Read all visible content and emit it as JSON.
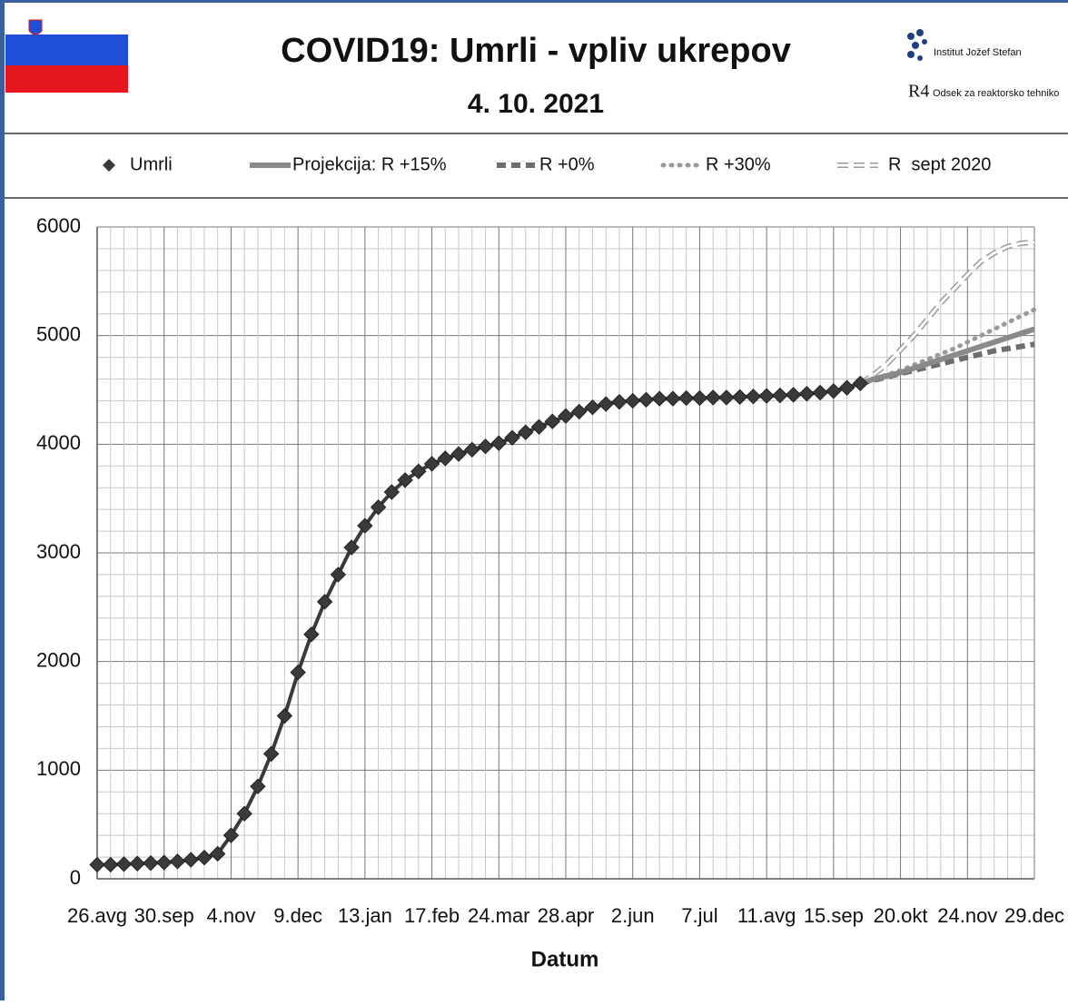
{
  "header": {
    "logo_texts": [
      "Institut Jožef Stefan",
      "Odsek za reaktorsko tehniko"
    ],
    "logo_mark": "R4"
  },
  "chart_data": {
    "type": "line",
    "title": "COVID19: Umrli - vpliv ukrepov",
    "subtitle": "4. 10. 2021",
    "x_label": "Datum",
    "categories": [
      "26.avg",
      null,
      null,
      null,
      null,
      "30.sep",
      null,
      null,
      null,
      null,
      "4.nov",
      null,
      null,
      null,
      null,
      "9.dec",
      null,
      null,
      null,
      null,
      "13.jan",
      null,
      null,
      null,
      null,
      "17.feb",
      null,
      null,
      null,
      null,
      "24.mar",
      null,
      null,
      null,
      null,
      "28.apr",
      null,
      null,
      null,
      null,
      "2.jun",
      null,
      null,
      null,
      null,
      "7.jul",
      null,
      null,
      null,
      null,
      "11.avg",
      null,
      null,
      null,
      null,
      "15.sep",
      null,
      null,
      null,
      null,
      "20.okt",
      null,
      null,
      null,
      null,
      "24.nov",
      null,
      null,
      null,
      null,
      "29.dec"
    ],
    "ylim": [
      0,
      6000
    ],
    "yticks": [
      0,
      1000,
      2000,
      3000,
      4000,
      5000,
      6000
    ],
    "grid": true,
    "legend": "top",
    "series": [
      {
        "name": "Umrli",
        "color": "#3a3a3a",
        "style": "marker",
        "values": [
          130,
          130,
          135,
          140,
          145,
          150,
          160,
          175,
          195,
          230,
          400,
          600,
          850,
          1150,
          1500,
          1900,
          2250,
          2550,
          2800,
          3050,
          3250,
          3420,
          3560,
          3670,
          3750,
          3820,
          3870,
          3910,
          3950,
          3980,
          4010,
          4060,
          4110,
          4160,
          4210,
          4260,
          4300,
          4340,
          4370,
          4390,
          4400,
          4410,
          4420,
          4420,
          4425,
          4425,
          4430,
          4430,
          4435,
          4440,
          4445,
          4450,
          4455,
          4465,
          4475,
          4490,
          4520,
          4560,
          null,
          null,
          null,
          null,
          null,
          null,
          null,
          null,
          null,
          null,
          null,
          null,
          null
        ]
      },
      {
        "name": "Projekcija: R +15%",
        "color": "#8a8a8a",
        "style": "solid",
        "values": [
          null,
          null,
          null,
          null,
          null,
          null,
          null,
          null,
          null,
          null,
          null,
          null,
          null,
          null,
          null,
          null,
          null,
          null,
          null,
          null,
          null,
          null,
          null,
          null,
          null,
          null,
          null,
          null,
          null,
          null,
          null,
          null,
          null,
          null,
          null,
          null,
          null,
          null,
          null,
          null,
          null,
          null,
          null,
          null,
          null,
          null,
          null,
          null,
          null,
          null,
          null,
          null,
          null,
          null,
          null,
          null,
          null,
          4560,
          4600,
          4630,
          4660,
          4700,
          4740,
          4780,
          4820,
          4860,
          4900,
          4940,
          4980,
          5020,
          5060
        ]
      },
      {
        "name": "R +0%",
        "color": "#6e6e6e",
        "style": "dash",
        "values": [
          null,
          null,
          null,
          null,
          null,
          null,
          null,
          null,
          null,
          null,
          null,
          null,
          null,
          null,
          null,
          null,
          null,
          null,
          null,
          null,
          null,
          null,
          null,
          null,
          null,
          null,
          null,
          null,
          null,
          null,
          null,
          null,
          null,
          null,
          null,
          null,
          null,
          null,
          null,
          null,
          null,
          null,
          null,
          null,
          null,
          null,
          null,
          null,
          null,
          null,
          null,
          null,
          null,
          null,
          null,
          null,
          null,
          4560,
          4590,
          4620,
          4650,
          4680,
          4710,
          4740,
          4770,
          4800,
          4830,
          4860,
          4880,
          4900,
          4920
        ]
      },
      {
        "name": "R +30%",
        "color": "#9a9a9a",
        "style": "dot",
        "values": [
          null,
          null,
          null,
          null,
          null,
          null,
          null,
          null,
          null,
          null,
          null,
          null,
          null,
          null,
          null,
          null,
          null,
          null,
          null,
          null,
          null,
          null,
          null,
          null,
          null,
          null,
          null,
          null,
          null,
          null,
          null,
          null,
          null,
          null,
          null,
          null,
          null,
          null,
          null,
          null,
          null,
          null,
          null,
          null,
          null,
          null,
          null,
          null,
          null,
          null,
          null,
          null,
          null,
          null,
          null,
          null,
          null,
          4560,
          4600,
          4640,
          4680,
          4730,
          4780,
          4830,
          4880,
          4940,
          5000,
          5060,
          5120,
          5180,
          5240
        ]
      },
      {
        "name": "R  sept 2020",
        "color": "#9a9a9a",
        "style": "hollow-dash",
        "values": [
          null,
          null,
          null,
          null,
          null,
          null,
          null,
          null,
          null,
          null,
          null,
          null,
          null,
          null,
          null,
          null,
          null,
          null,
          null,
          null,
          null,
          null,
          null,
          null,
          null,
          null,
          null,
          null,
          null,
          null,
          null,
          null,
          null,
          null,
          null,
          null,
          null,
          null,
          null,
          null,
          null,
          null,
          null,
          null,
          null,
          null,
          null,
          null,
          null,
          null,
          null,
          null,
          null,
          null,
          null,
          null,
          null,
          4560,
          4640,
          4740,
          4870,
          5000,
          5150,
          5300,
          5430,
          5560,
          5680,
          5760,
          5820,
          5850,
          5860
        ]
      }
    ]
  }
}
